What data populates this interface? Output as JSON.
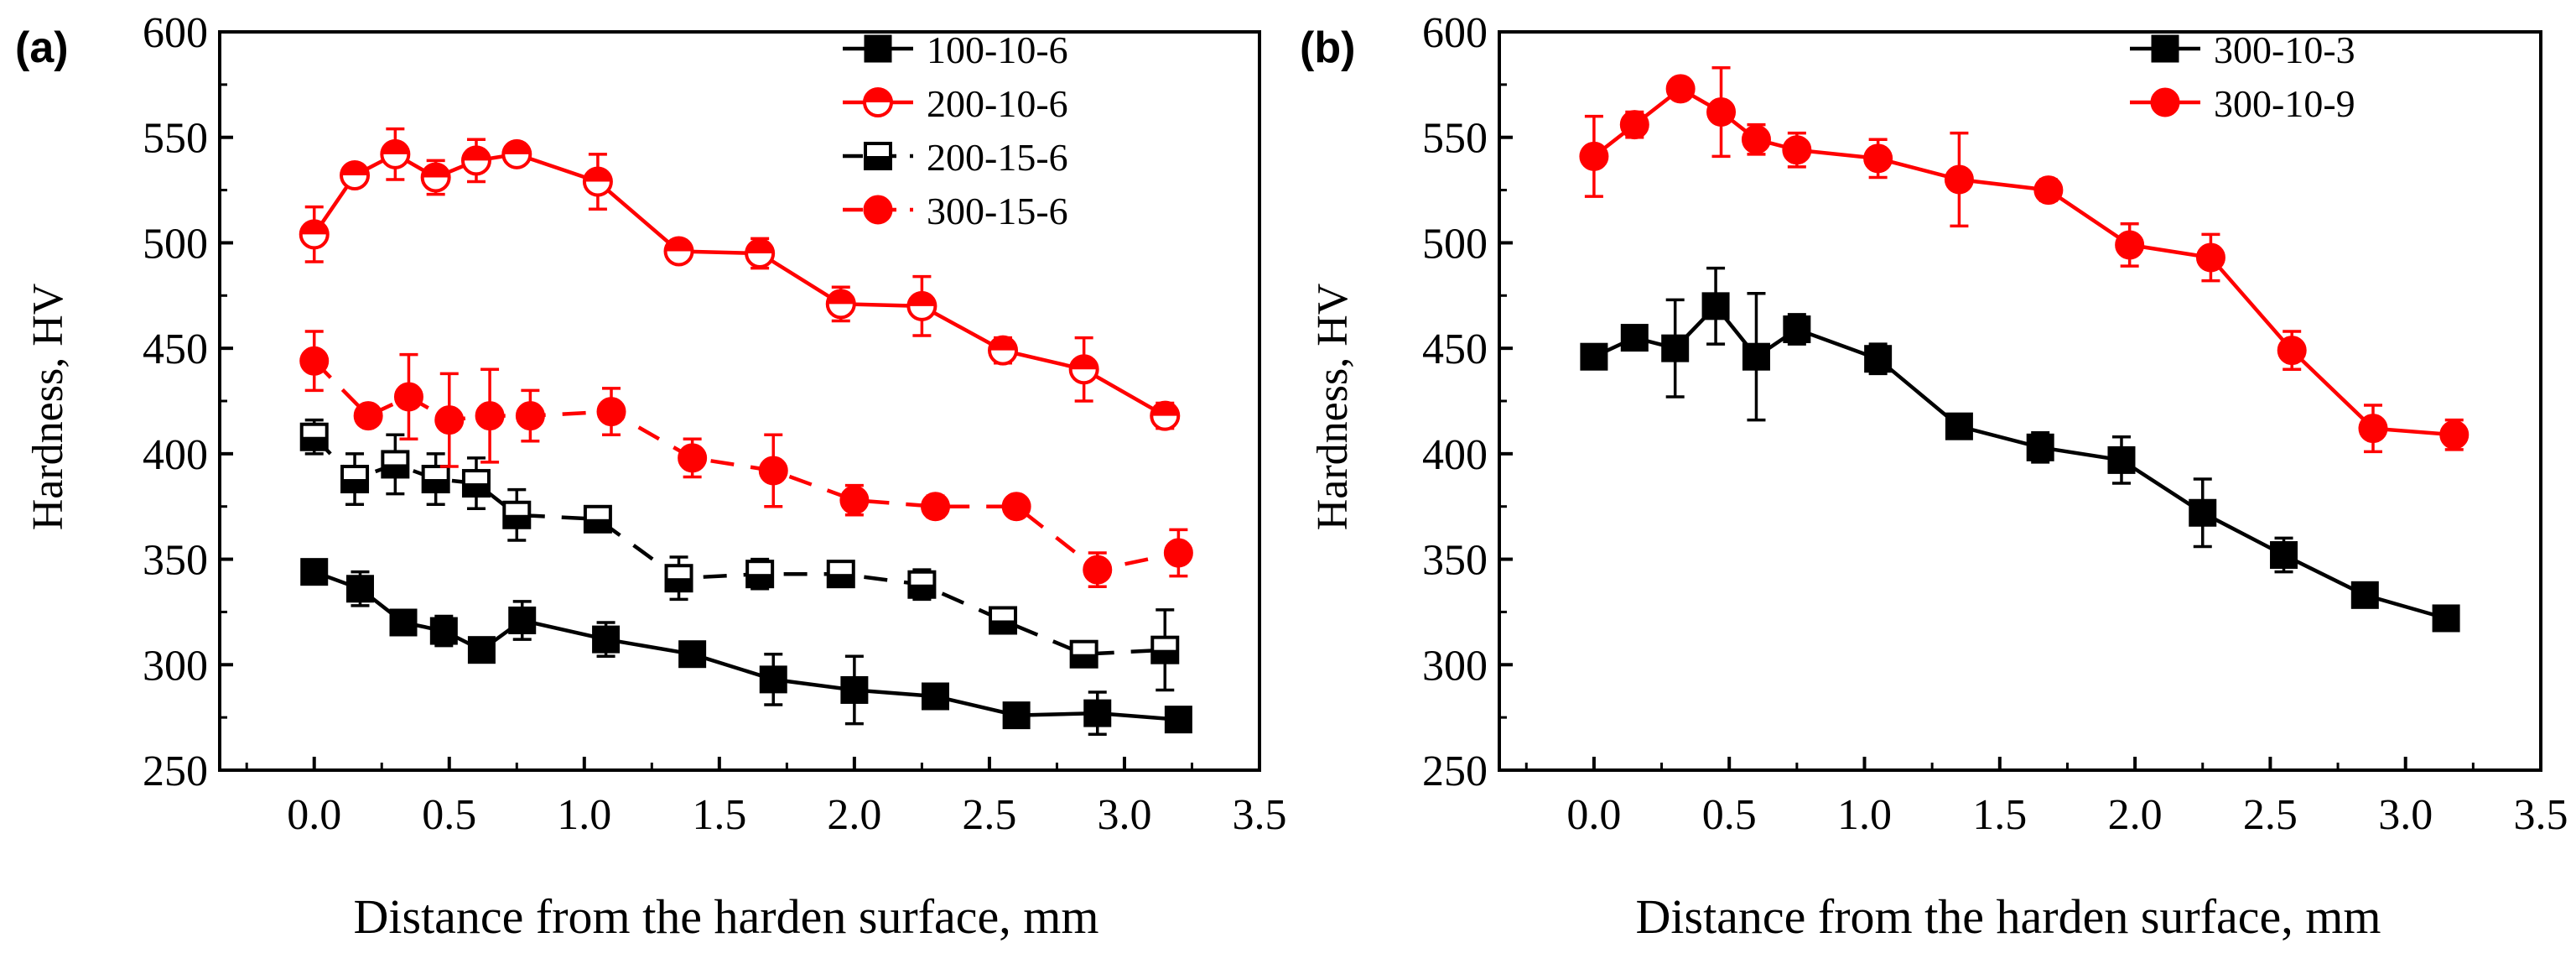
{
  "chart_data": [
    {
      "type": "line",
      "panel_label": "(a)",
      "xlabel": "Distance from the harden surface, mm",
      "ylabel": "Hardness, HV",
      "xlim": [
        -0.35,
        3.5
      ],
      "ylim": [
        250,
        600
      ],
      "xticks": [
        0.0,
        0.5,
        1.0,
        1.5,
        2.0,
        2.5,
        3.0,
        3.5
      ],
      "xtick_labels": [
        "0.0",
        "0.5",
        "1.0",
        "1.5",
        "2.0",
        "2.5",
        "3.0",
        "3.5"
      ],
      "yticks": [
        250,
        300,
        350,
        400,
        450,
        500,
        550,
        600
      ],
      "ytick_labels": [
        "250",
        "300",
        "350",
        "400",
        "450",
        "500",
        "550",
        "600"
      ],
      "legend_position": "top-right",
      "series": [
        {
          "name": "100-10-6",
          "color": "#000000",
          "marker": "square-filled",
          "dash": "solid",
          "x": [
            0.0,
            0.17,
            0.33,
            0.48,
            0.62,
            0.77,
            1.08,
            1.4,
            1.7,
            2.0,
            2.3,
            2.6,
            2.9,
            3.2
          ],
          "y": [
            344,
            336,
            320,
            316,
            307,
            321,
            312,
            305,
            293,
            288,
            285,
            276,
            277,
            274
          ],
          "err": [
            4,
            8,
            4,
            7,
            4,
            9,
            8,
            5,
            12,
            16,
            4,
            4,
            10,
            4
          ]
        },
        {
          "name": "200-10-6",
          "color": "#ff0000",
          "marker": "circle-half",
          "dash": "solid",
          "x": [
            0.0,
            0.15,
            0.3,
            0.45,
            0.6,
            0.75,
            1.05,
            1.35,
            1.65,
            1.95,
            2.25,
            2.55,
            2.85,
            3.15
          ],
          "y": [
            504,
            532,
            542,
            531,
            539,
            542,
            529,
            496,
            495,
            471,
            470,
            449,
            440,
            418
          ],
          "err": [
            13,
            4,
            12,
            8,
            10,
            4,
            13,
            3,
            7,
            8,
            14,
            6,
            15,
            6
          ]
        },
        {
          "name": "200-15-6",
          "color": "#000000",
          "marker": "square-half",
          "dash": "dashed",
          "x": [
            0.0,
            0.15,
            0.3,
            0.45,
            0.6,
            0.75,
            1.05,
            1.35,
            1.65,
            1.95,
            2.25,
            2.55,
            2.85,
            3.15
          ],
          "y": [
            408,
            388,
            395,
            388,
            386,
            371,
            369,
            341,
            343,
            343,
            338,
            321,
            305,
            307
          ],
          "err": [
            8,
            12,
            14,
            12,
            12,
            12,
            3,
            10,
            7,
            3,
            7,
            6,
            3,
            19
          ]
        },
        {
          "name": "300-15-6",
          "color": "#ff0000",
          "marker": "circle-filled",
          "dash": "dashed",
          "x": [
            0.0,
            0.2,
            0.35,
            0.5,
            0.65,
            0.8,
            1.1,
            1.4,
            1.7,
            2.0,
            2.3,
            2.6,
            2.9,
            3.2
          ],
          "y": [
            444,
            418,
            427,
            416,
            418,
            418,
            420,
            398,
            392,
            378,
            375,
            375,
            345,
            353
          ],
          "err": [
            14,
            4,
            20,
            22,
            22,
            12,
            11,
            9,
            17,
            7,
            5,
            3,
            8,
            11
          ]
        }
      ]
    },
    {
      "type": "line",
      "panel_label": "(b)",
      "xlabel": "Distance from the harden surface, mm",
      "ylabel": "Hardness, HV",
      "xlim": [
        -0.35,
        3.5
      ],
      "ylim": [
        250,
        600
      ],
      "xticks": [
        0.0,
        0.5,
        1.0,
        1.5,
        2.0,
        2.5,
        3.0,
        3.5
      ],
      "xtick_labels": [
        "0.0",
        "0.5",
        "1.0",
        "1.5",
        "2.0",
        "2.5",
        "3.0",
        "3.5"
      ],
      "yticks": [
        250,
        300,
        350,
        400,
        450,
        500,
        550,
        600
      ],
      "ytick_labels": [
        "250",
        "300",
        "350",
        "400",
        "450",
        "500",
        "550",
        "600"
      ],
      "legend_position": "top-right",
      "series": [
        {
          "name": "300-10-3",
          "color": "#000000",
          "marker": "square-filled",
          "dash": "solid",
          "x": [
            0.0,
            0.15,
            0.3,
            0.45,
            0.6,
            0.75,
            1.05,
            1.35,
            1.65,
            1.95,
            2.25,
            2.55,
            2.85,
            3.15
          ],
          "y": [
            446,
            455,
            450,
            470,
            446,
            459,
            445,
            413,
            403,
            397,
            372,
            352,
            333,
            322
          ],
          "err": [
            4,
            3,
            23,
            18,
            30,
            7,
            7,
            3,
            7,
            11,
            16,
            8,
            4,
            3
          ]
        },
        {
          "name": "300-10-9",
          "color": "#ff0000",
          "marker": "circle-filled",
          "dash": "solid",
          "x": [
            0.0,
            0.15,
            0.32,
            0.47,
            0.6,
            0.75,
            1.05,
            1.35,
            1.68,
            1.98,
            2.28,
            2.58,
            2.88,
            3.18
          ],
          "y": [
            541,
            556,
            573,
            562,
            549,
            544,
            540,
            530,
            525,
            499,
            493,
            449,
            412,
            409
          ],
          "err": [
            19,
            6,
            4,
            21,
            7,
            8,
            9,
            22,
            5,
            10,
            11,
            9,
            11,
            7
          ]
        }
      ]
    }
  ]
}
